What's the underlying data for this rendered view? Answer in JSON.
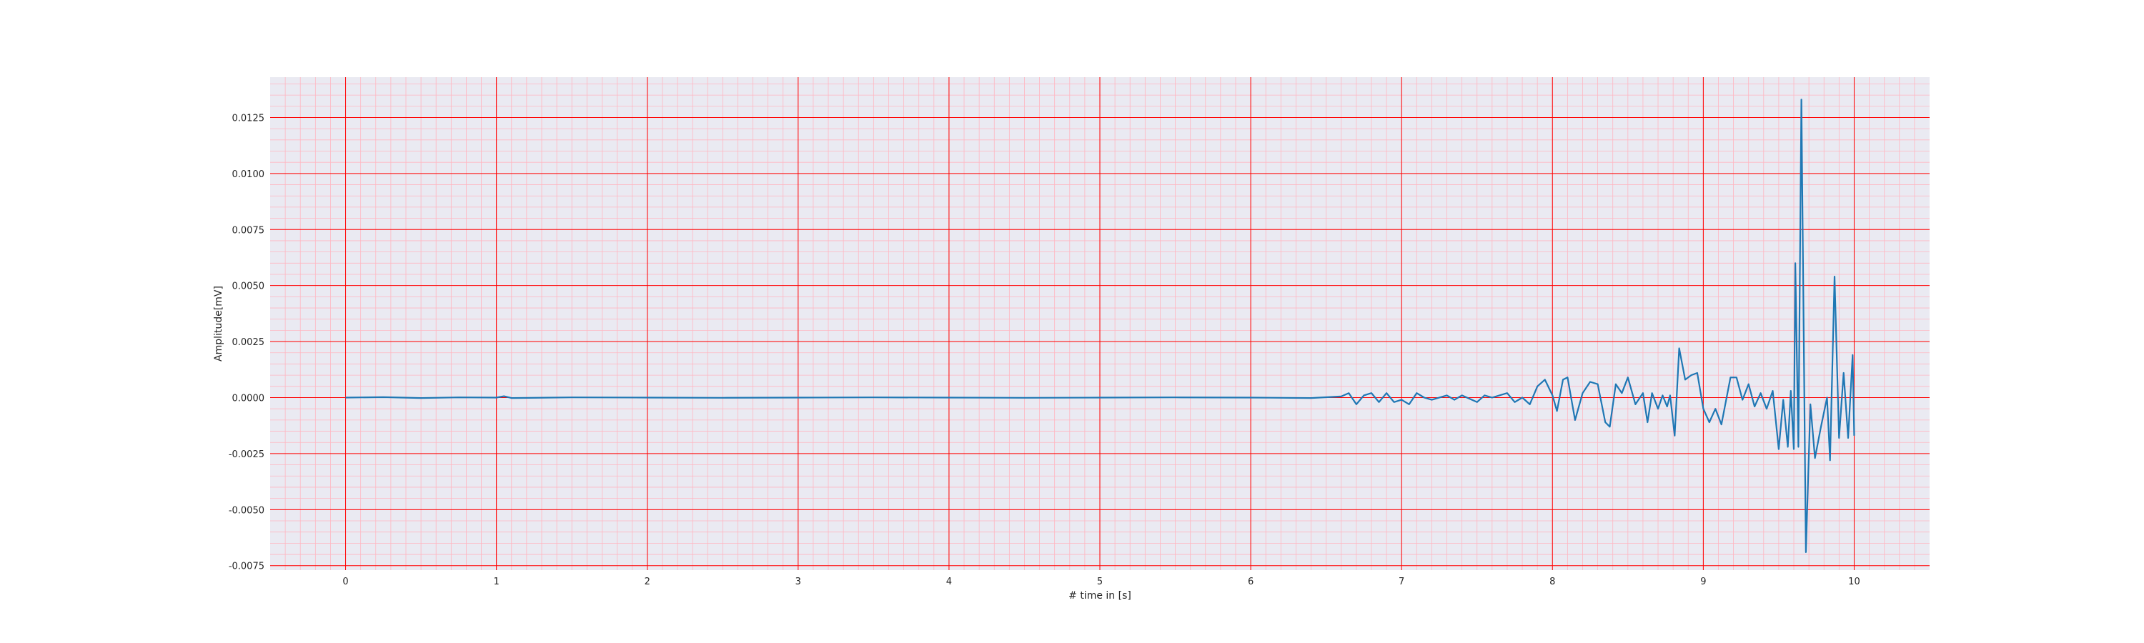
{
  "chart_data": {
    "type": "line",
    "title": "",
    "xlabel": "# time in [s]",
    "ylabel": "Amplitude[mV]",
    "xlim": [
      -0.5,
      10.5
    ],
    "ylim": [
      -0.0077,
      0.0143
    ],
    "x_ticks": [
      0,
      1,
      2,
      3,
      4,
      5,
      6,
      7,
      8,
      9,
      10
    ],
    "x_tick_labels": [
      "0",
      "1",
      "2",
      "3",
      "4",
      "5",
      "6",
      "7",
      "8",
      "9",
      "10"
    ],
    "y_ticks": [
      -0.0075,
      -0.005,
      -0.0025,
      0.0,
      0.0025,
      0.005,
      0.0075,
      0.01,
      0.0125
    ],
    "y_tick_labels": [
      "-0.0075",
      "-0.0050",
      "-0.0025",
      "0.0000",
      "0.0025",
      "0.0050",
      "0.0075",
      "0.0100",
      "0.0125"
    ],
    "grid": "on (major red, minor pink)",
    "colors": {
      "background": "#eaeaf2",
      "major_grid": "#ff0000",
      "minor_grid": "#ffb6c1",
      "line": "#1f77b4"
    },
    "series": [
      {
        "values": [
          [
            0.0,
            0.0
          ],
          [
            0.25,
            2e-05
          ],
          [
            0.5,
            -2e-05
          ],
          [
            0.75,
            1e-05
          ],
          [
            1.0,
            0.0
          ],
          [
            1.05,
            6e-05
          ],
          [
            1.1,
            -2e-05
          ],
          [
            1.5,
            1e-05
          ],
          [
            2.0,
            0.0
          ],
          [
            2.5,
            -1e-05
          ],
          [
            3.0,
            0.0
          ],
          [
            3.5,
            1e-05
          ],
          [
            4.0,
            0.0
          ],
          [
            4.5,
            -1e-05
          ],
          [
            5.0,
            0.0
          ],
          [
            5.5,
            1e-05
          ],
          [
            6.0,
            0.0
          ],
          [
            6.4,
            -2e-05
          ],
          [
            6.6,
            5e-05
          ],
          [
            6.65,
            0.0002
          ],
          [
            6.7,
            -0.0003
          ],
          [
            6.75,
            0.0001
          ],
          [
            6.8,
            0.0002
          ],
          [
            6.85,
            -0.0002
          ],
          [
            6.9,
            0.0002
          ],
          [
            6.95,
            -0.0002
          ],
          [
            7.0,
            -0.0001
          ],
          [
            7.05,
            -0.0003
          ],
          [
            7.1,
            0.0002
          ],
          [
            7.15,
            0.0
          ],
          [
            7.2,
            -0.0001
          ],
          [
            7.3,
            0.0001
          ],
          [
            7.35,
            -0.0001
          ],
          [
            7.4,
            0.0001
          ],
          [
            7.5,
            -0.0002
          ],
          [
            7.55,
            0.0001
          ],
          [
            7.6,
            0.0
          ],
          [
            7.7,
            0.0002
          ],
          [
            7.75,
            -0.0002
          ],
          [
            7.8,
            0.0
          ],
          [
            7.85,
            -0.0003
          ],
          [
            7.9,
            0.0005
          ],
          [
            7.95,
            0.0008
          ],
          [
            8.0,
            0.0001
          ],
          [
            8.03,
            -0.0006
          ],
          [
            8.07,
            0.0008
          ],
          [
            8.1,
            0.0009
          ],
          [
            8.15,
            -0.001
          ],
          [
            8.2,
            0.0002
          ],
          [
            8.25,
            0.0007
          ],
          [
            8.3,
            0.0006
          ],
          [
            8.35,
            -0.0011
          ],
          [
            8.38,
            -0.0013
          ],
          [
            8.42,
            0.0006
          ],
          [
            8.46,
            0.0002
          ],
          [
            8.5,
            0.0009
          ],
          [
            8.55,
            -0.0003
          ],
          [
            8.6,
            0.0002
          ],
          [
            8.63,
            -0.0011
          ],
          [
            8.66,
            0.0002
          ],
          [
            8.7,
            -0.0005
          ],
          [
            8.73,
            0.0001
          ],
          [
            8.76,
            -0.0004
          ],
          [
            8.78,
            0.0001
          ],
          [
            8.81,
            -0.0017
          ],
          [
            8.84,
            0.0022
          ],
          [
            8.88,
            0.0008
          ],
          [
            8.92,
            0.001
          ],
          [
            8.96,
            0.0011
          ],
          [
            9.0,
            -0.0005
          ],
          [
            9.04,
            -0.0011
          ],
          [
            9.08,
            -0.0005
          ],
          [
            9.12,
            -0.0012
          ],
          [
            9.18,
            0.0009
          ],
          [
            9.22,
            0.0009
          ],
          [
            9.26,
            -0.0001
          ],
          [
            9.3,
            0.0006
          ],
          [
            9.34,
            -0.0004
          ],
          [
            9.38,
            0.0002
          ],
          [
            9.42,
            -0.0005
          ],
          [
            9.46,
            0.0003
          ],
          [
            9.5,
            -0.0023
          ],
          [
            9.53,
            -0.0001
          ],
          [
            9.56,
            -0.0022
          ],
          [
            9.58,
            0.0003
          ],
          [
            9.6,
            -0.0023
          ],
          [
            9.61,
            0.006
          ],
          [
            9.63,
            -0.0022
          ],
          [
            9.65,
            0.0133
          ],
          [
            9.68,
            -0.0069
          ],
          [
            9.71,
            -0.0003
          ],
          [
            9.74,
            -0.0027
          ],
          [
            9.78,
            -0.0013
          ],
          [
            9.82,
            0.0
          ],
          [
            9.84,
            -0.0028
          ],
          [
            9.87,
            0.0054
          ],
          [
            9.9,
            -0.0018
          ],
          [
            9.93,
            0.0011
          ],
          [
            9.96,
            -0.0018
          ],
          [
            9.99,
            0.0019
          ],
          [
            10.0,
            -0.0017
          ]
        ]
      }
    ]
  }
}
